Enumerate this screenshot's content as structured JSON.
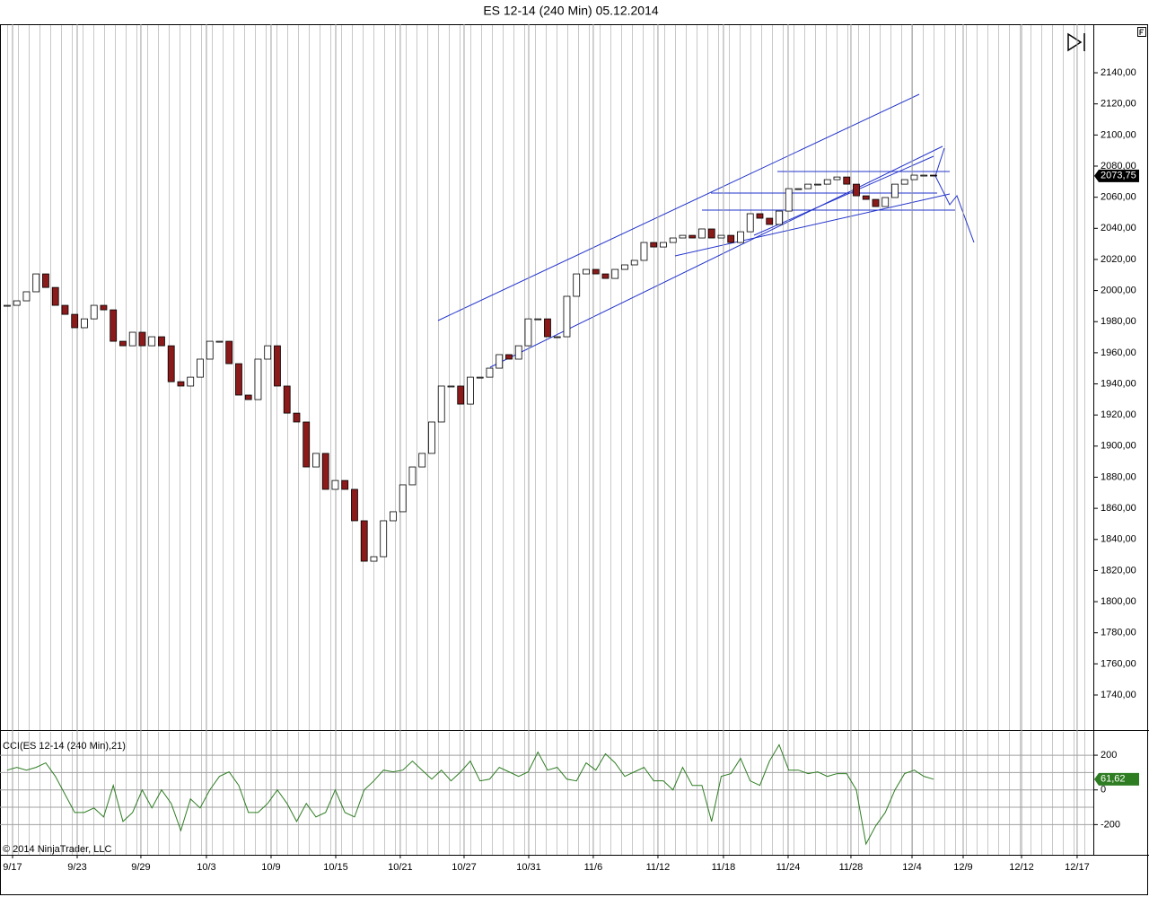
{
  "chart_data": [
    {
      "type": "candlestick",
      "title": "ES 12-14 (240 Min)  05.12.2014",
      "values": [
        1990.5,
        1993.4,
        1999.2,
        2010.7,
        2002.0,
        1990.5,
        1984.7,
        1976.1,
        1981.8,
        1990.5,
        1987.6,
        1967.4,
        1964.5,
        1973.2,
        1964.5,
        1970.3,
        1964.5,
        1941.4,
        1938.6,
        1944.3,
        1955.9,
        1967.4,
        1967.4,
        1953.0,
        1932.8,
        1929.9,
        1955.9,
        1964.5,
        1938.6,
        1921.2,
        1915.5,
        1886.6,
        1895.3,
        1872.2,
        1877.9,
        1872.2,
        1852.0,
        1826.0,
        1828.9,
        1852.0,
        1857.8,
        1875.1,
        1886.6,
        1895.3,
        1915.5,
        1938.6,
        1938.6,
        1927.0,
        1944.3,
        1944.3,
        1950.1,
        1958.8,
        1955.9,
        1964.5,
        1981.8,
        1981.8,
        1970.3,
        1970.3,
        1996.3,
        2010.7,
        2013.6,
        2010.7,
        2007.8,
        2013.6,
        2016.5,
        2019.4,
        2030.9,
        2028.0,
        2030.9,
        2033.8,
        2035.5,
        2033.8,
        2039.6,
        2033.8,
        2035.5,
        2030.9,
        2037.8,
        2049.4,
        2046.5,
        2042.5,
        2051.1,
        2065.5,
        2065.5,
        2068.4,
        2068.4,
        2071.3,
        2073.0,
        2068.4,
        2060.9,
        2058.6,
        2054.0,
        2059.8,
        2068.4,
        2071.3,
        2074.2,
        2074.2,
        2073.75
      ],
      "value_labels": [
        null,
        null,
        null,
        null,
        null,
        null,
        null,
        null,
        null,
        null,
        null,
        null,
        null,
        null,
        null,
        null,
        null,
        null,
        null,
        null,
        null,
        null,
        null,
        null,
        null,
        null,
        null,
        null,
        null,
        null,
        null,
        null,
        null,
        null,
        null,
        null,
        null,
        null,
        null,
        null,
        null,
        null,
        null,
        null,
        null,
        null,
        null,
        null,
        null,
        null,
        null,
        null,
        null,
        null,
        null,
        null,
        null,
        null,
        null,
        null,
        null,
        null,
        null,
        null,
        null,
        null,
        null,
        null,
        null,
        null,
        null,
        null,
        null,
        null,
        null,
        null,
        null,
        null,
        null,
        null,
        null,
        null,
        null,
        null,
        null,
        null,
        null,
        null,
        null,
        null,
        null,
        null,
        null,
        null,
        null,
        null,
        "2073,75"
      ],
      "up_color": "#ffffff",
      "down_color": "#8b1a1a",
      "outline_color": "#000000",
      "label_color": "#000000",
      "ylim": [
        1717.5,
        2171.2
      ],
      "yticks": [
        {
          "value": 1740,
          "label": "1740,00"
        },
        {
          "value": 1760,
          "label": "1760,00"
        },
        {
          "value": 1780,
          "label": "1780,00"
        },
        {
          "value": 1800,
          "label": "1800,00"
        },
        {
          "value": 1820,
          "label": "1820,00"
        },
        {
          "value": 1840,
          "label": "1840,00"
        },
        {
          "value": 1860,
          "label": "1860,00"
        },
        {
          "value": 1880,
          "label": "1880,00"
        },
        {
          "value": 1900,
          "label": "1900,00"
        },
        {
          "value": 1920,
          "label": "1920,00"
        },
        {
          "value": 1940,
          "label": "1940,00"
        },
        {
          "value": 1960,
          "label": "1960,00"
        },
        {
          "value": 1980,
          "label": "1980,00"
        },
        {
          "value": 2000,
          "label": "2000,00"
        },
        {
          "value": 2020,
          "label": "2020,00"
        },
        {
          "value": 2040,
          "label": "2040,00"
        },
        {
          "value": 2060,
          "label": "2060,00"
        },
        {
          "value": 2080,
          "label": "2080,00"
        },
        {
          "value": 2100,
          "label": "2100,00"
        },
        {
          "value": 2120,
          "label": "2120,00"
        },
        {
          "value": 2140,
          "label": "2140,00"
        }
      ],
      "xlim": [
        -0.74,
        112.56
      ],
      "xticks": [
        {
          "value": 0.56,
          "label": "9/17"
        },
        {
          "value": 7.26,
          "label": "9/23"
        },
        {
          "value": 13.86,
          "label": "9/29"
        },
        {
          "value": 20.65,
          "label": "10/3"
        },
        {
          "value": 27.35,
          "label": "10/9"
        },
        {
          "value": 34.05,
          "label": "10/15"
        },
        {
          "value": 40.74,
          "label": "10/21"
        },
        {
          "value": 47.35,
          "label": "10/27"
        },
        {
          "value": 54.05,
          "label": "10/31"
        },
        {
          "value": 60.74,
          "label": "11/6"
        },
        {
          "value": 67.44,
          "label": "11/12"
        },
        {
          "value": 74.23,
          "label": "11/18"
        },
        {
          "value": 80.93,
          "label": "11/24"
        },
        {
          "value": 87.44,
          "label": "11/28"
        },
        {
          "value": 93.77,
          "label": "12/4"
        },
        {
          "value": 99.07,
          "label": "12/9"
        },
        {
          "value": 105.12,
          "label": "12/12"
        },
        {
          "value": 110.88,
          "label": "12/17"
        }
      ],
      "annotation": "© 2014 NinjaTrader, LLC"
    },
    {
      "type": "line",
      "title": "CCI(ES 12-14 (240 Min),21)",
      "color": "#2e7d22",
      "values": [
        114,
        130,
        114,
        130,
        156,
        78,
        -26,
        -130,
        -130,
        -104,
        -156,
        26,
        -182,
        -130,
        0,
        -104,
        0,
        -78,
        -234,
        -52,
        -104,
        0,
        78,
        104,
        26,
        -130,
        -130,
        -78,
        0,
        -78,
        -182,
        -78,
        -156,
        -130,
        0,
        -130,
        -156,
        0,
        52,
        114,
        104,
        114,
        166,
        114,
        62,
        114,
        52,
        104,
        166,
        52,
        62,
        130,
        104,
        78,
        104,
        218,
        114,
        130,
        62,
        52,
        156,
        114,
        208,
        156,
        78,
        104,
        130,
        52,
        52,
        0,
        130,
        26,
        26,
        -182,
        78,
        94,
        182,
        52,
        26,
        166,
        260,
        114,
        114,
        94,
        104,
        78,
        94,
        94,
        0,
        -312,
        -208,
        -130,
        0,
        94,
        114,
        78,
        61.62
      ],
      "value_labels": [
        null,
        null,
        null,
        null,
        null,
        null,
        null,
        null,
        null,
        null,
        null,
        null,
        null,
        null,
        null,
        null,
        null,
        null,
        null,
        null,
        null,
        null,
        null,
        null,
        null,
        null,
        null,
        null,
        null,
        null,
        null,
        null,
        null,
        null,
        null,
        null,
        null,
        null,
        null,
        null,
        null,
        null,
        null,
        null,
        null,
        null,
        null,
        null,
        null,
        null,
        null,
        null,
        null,
        null,
        null,
        null,
        null,
        null,
        null,
        null,
        null,
        null,
        null,
        null,
        null,
        null,
        null,
        null,
        null,
        null,
        null,
        null,
        null,
        null,
        null,
        null,
        null,
        null,
        null,
        null,
        null,
        null,
        null,
        null,
        null,
        null,
        null,
        null,
        null,
        null,
        null,
        null,
        null,
        null,
        null,
        null,
        "61,62"
      ],
      "ylim": [
        -374,
        335
      ],
      "yticks": [
        200,
        0,
        -200
      ],
      "levels": [
        200,
        100,
        0,
        -100,
        -200
      ],
      "grid": true
    }
  ]
}
